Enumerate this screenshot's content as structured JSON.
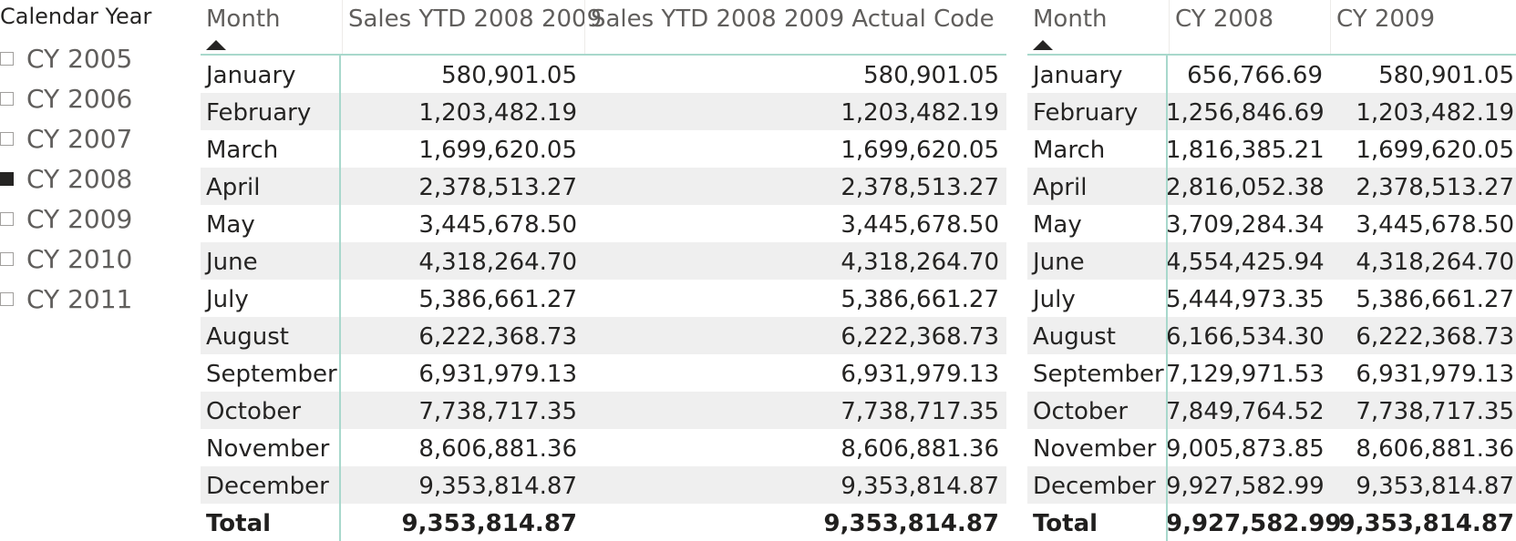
{
  "slicer": {
    "title": "Calendar Year",
    "items": [
      {
        "label": "CY 2005",
        "checked": false
      },
      {
        "label": "CY 2006",
        "checked": false
      },
      {
        "label": "CY 2007",
        "checked": false
      },
      {
        "label": "CY 2008",
        "checked": true
      },
      {
        "label": "CY 2009",
        "checked": false
      },
      {
        "label": "CY 2010",
        "checked": false
      },
      {
        "label": "CY 2011",
        "checked": false
      }
    ]
  },
  "table1": {
    "headers": [
      "Month",
      "Sales YTD 2008 2009",
      "Sales YTD 2008 2009 Actual Code"
    ],
    "sort_column": "Month",
    "rows": [
      [
        "January",
        "580,901.05",
        "580,901.05"
      ],
      [
        "February",
        "1,203,482.19",
        "1,203,482.19"
      ],
      [
        "March",
        "1,699,620.05",
        "1,699,620.05"
      ],
      [
        "April",
        "2,378,513.27",
        "2,378,513.27"
      ],
      [
        "May",
        "3,445,678.50",
        "3,445,678.50"
      ],
      [
        "June",
        "4,318,264.70",
        "4,318,264.70"
      ],
      [
        "July",
        "5,386,661.27",
        "5,386,661.27"
      ],
      [
        "August",
        "6,222,368.73",
        "6,222,368.73"
      ],
      [
        "September",
        "6,931,979.13",
        "6,931,979.13"
      ],
      [
        "October",
        "7,738,717.35",
        "7,738,717.35"
      ],
      [
        "November",
        "8,606,881.36",
        "8,606,881.36"
      ],
      [
        "December",
        "9,353,814.87",
        "9,353,814.87"
      ]
    ],
    "total": [
      "Total",
      "9,353,814.87",
      "9,353,814.87"
    ]
  },
  "table2": {
    "headers": [
      "Month",
      "CY 2008",
      "CY 2009"
    ],
    "sort_column": "Month",
    "rows": [
      [
        "January",
        "656,766.69",
        "580,901.05"
      ],
      [
        "February",
        "1,256,846.69",
        "1,203,482.19"
      ],
      [
        "March",
        "1,816,385.21",
        "1,699,620.05"
      ],
      [
        "April",
        "2,816,052.38",
        "2,378,513.27"
      ],
      [
        "May",
        "3,709,284.34",
        "3,445,678.50"
      ],
      [
        "June",
        "4,554,425.94",
        "4,318,264.70"
      ],
      [
        "July",
        "5,444,973.35",
        "5,386,661.27"
      ],
      [
        "August",
        "6,166,534.30",
        "6,222,368.73"
      ],
      [
        "September",
        "7,129,971.53",
        "6,931,979.13"
      ],
      [
        "October",
        "7,849,764.52",
        "7,738,717.35"
      ],
      [
        "November",
        "9,005,873.85",
        "8,606,881.36"
      ],
      [
        "December",
        "9,927,582.99",
        "9,353,814.87"
      ]
    ],
    "total": [
      "Total",
      "9,927,582.99",
      "9,353,814.87"
    ]
  }
}
